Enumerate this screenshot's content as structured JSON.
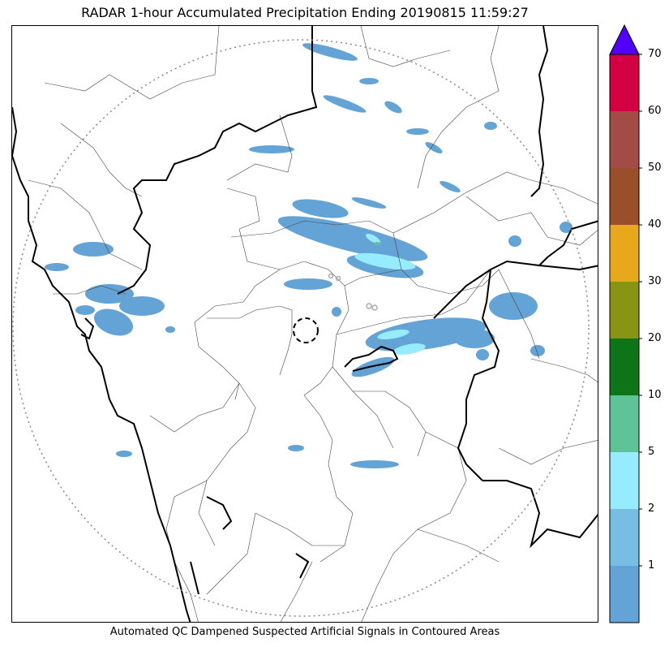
{
  "title": "RADAR 1-hour Accumulated Precipitation Ending 20190815 11:59:27",
  "caption": "Automated QC Dampened Suspected Artificial Signals in Contoured Areas",
  "colorbar": {
    "bins": [
      {
        "min": 0,
        "max": 1,
        "color": "#63a3d5"
      },
      {
        "min": 1,
        "max": 2,
        "color": "#78bee4"
      },
      {
        "min": 2,
        "max": 5,
        "color": "#96ebfc"
      },
      {
        "min": 5,
        "max": 10,
        "color": "#5ec497"
      },
      {
        "min": 10,
        "max": 20,
        "color": "#0d7418"
      },
      {
        "min": 20,
        "max": 30,
        "color": "#8a9414"
      },
      {
        "min": 30,
        "max": 40,
        "color": "#e8a81c"
      },
      {
        "min": 40,
        "max": 50,
        "color": "#994f29"
      },
      {
        "min": 50,
        "max": 60,
        "color": "#a34b45"
      },
      {
        "min": 60,
        "max": 70,
        "color": "#d30043"
      }
    ],
    "extend_max_color": "#5100fc",
    "tick_labels": [
      "1",
      "2",
      "5",
      "10",
      "20",
      "30",
      "40",
      "50",
      "60",
      "70"
    ]
  },
  "map": {
    "radar_range_ring": "dotted",
    "radar_site_marker": "dashed-circle"
  }
}
